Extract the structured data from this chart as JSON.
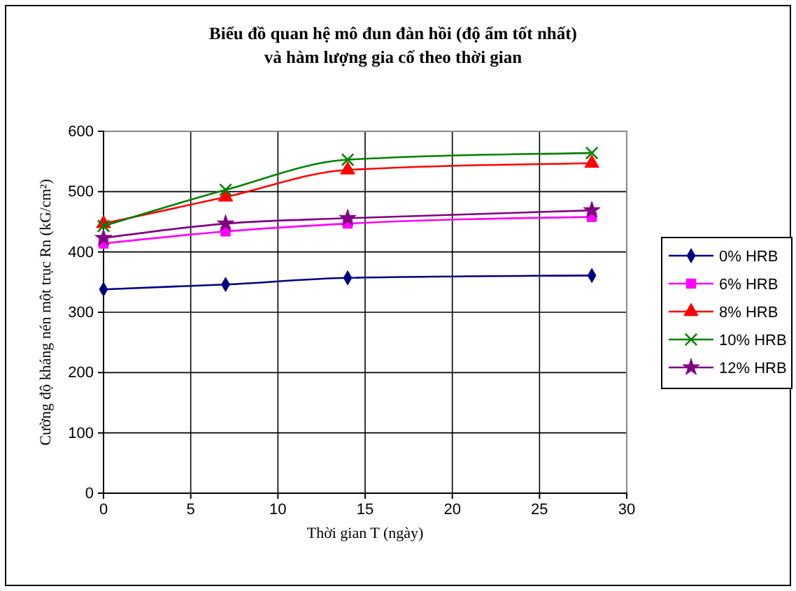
{
  "chart_data": {
    "type": "line",
    "title": "Biểu đồ quan hệ mô đun đàn hồi (độ ẩm tốt nhất)\nvà hàm lượng gia cố theo thời gian",
    "xlabel": "Thời gian T (ngày)",
    "ylabel": "Cường độ kháng nén một trục Rn (kG/cm²)",
    "x": [
      0,
      7,
      14,
      28
    ],
    "series": [
      {
        "name": "0% HRB",
        "color": "#000080",
        "marker": "diamond",
        "values": [
          338,
          346,
          357,
          361
        ]
      },
      {
        "name": "6% HRB",
        "color": "#ff00ff",
        "marker": "square",
        "values": [
          414,
          434,
          447,
          458
        ]
      },
      {
        "name": "8% HRB",
        "color": "#ff0000",
        "marker": "triangle",
        "values": [
          447,
          491,
          536,
          547
        ]
      },
      {
        "name": "10% HRB",
        "color": "#008000",
        "marker": "cross",
        "values": [
          443,
          503,
          553,
          564
        ]
      },
      {
        "name": "12% HRB",
        "color": "#800080",
        "marker": "star",
        "values": [
          423,
          447,
          456,
          469
        ]
      }
    ],
    "xlim": [
      0,
      30
    ],
    "xticks": [
      0,
      5,
      10,
      15,
      20,
      25,
      30
    ],
    "ylim": [
      0,
      600
    ],
    "yticks": [
      0,
      100,
      200,
      300,
      400,
      500,
      600
    ],
    "grid": true,
    "legend": "right"
  }
}
